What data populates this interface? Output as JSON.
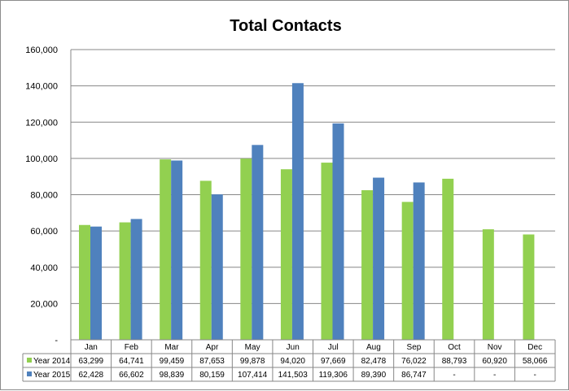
{
  "chart_data": {
    "type": "bar",
    "title": "Total Contacts",
    "categories": [
      "Jan",
      "Feb",
      "Mar",
      "Apr",
      "May",
      "Jun",
      "Jul",
      "Aug",
      "Sep",
      "Oct",
      "Nov",
      "Dec"
    ],
    "ylim": [
      0,
      160000
    ],
    "y_ticks": [
      0,
      20000,
      40000,
      60000,
      80000,
      100000,
      120000,
      140000,
      160000
    ],
    "y_tick_labels": [
      "-",
      "20,000",
      "40,000",
      "60,000",
      "80,000",
      "100,000",
      "120,000",
      "140,000",
      "160,000"
    ],
    "grid": true,
    "legend": "data table below chart",
    "series": [
      {
        "name": "Year 2014",
        "color": "#92d050",
        "values": [
          63299,
          64741,
          99459,
          87653,
          99878,
          94020,
          97669,
          82478,
          76022,
          88793,
          60920,
          58066
        ],
        "labels": [
          "63,299",
          "64,741",
          "99,459",
          "87,653",
          "99,878",
          "94,020",
          "97,669",
          "82,478",
          "76,022",
          "88,793",
          "60,920",
          "58,066"
        ]
      },
      {
        "name": "Year 2015",
        "color": "#4f81bd",
        "values": [
          62428,
          66602,
          98839,
          80159,
          107414,
          141503,
          119306,
          89390,
          86747,
          null,
          null,
          null
        ],
        "labels": [
          "62,428",
          "66,602",
          "98,839",
          "80,159",
          "107,414",
          "141,503",
          "119,306",
          "89,390",
          "86,747",
          "-",
          "-",
          "-"
        ]
      }
    ]
  }
}
